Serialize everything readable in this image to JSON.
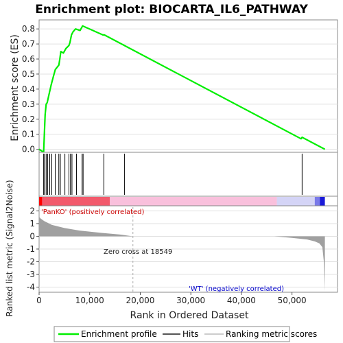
{
  "title": "Enrichment plot: BIOCARTA_IL6_PATHWAY",
  "colors": {
    "enrichment_line": "#00ee00",
    "hits": "#000000",
    "positive_label": "#cc0000",
    "negative_label": "#0000cc",
    "metric_fill": "#a0a0a0",
    "grid": "#e0e0e0"
  },
  "legend": {
    "enrichment_profile": "Enrichment profile",
    "hits": "Hits",
    "ranking_metric_scores": "Ranking metric scores"
  },
  "chart_data": [
    {
      "type": "line",
      "name": "enrichment-score-panel",
      "title": "Enrichment plot: BIOCARTA_IL6_PATHWAY",
      "ylabel": "Enrichment score (ES)",
      "ylim": [
        -0.02,
        0.86
      ],
      "yticks": [
        0.0,
        0.1,
        0.2,
        0.3,
        0.4,
        0.5,
        0.6,
        0.7,
        0.8
      ],
      "ytick_labels": [
        "0.0",
        "0.1",
        "0.2",
        "0.3",
        "0.4",
        "0.5",
        "0.6",
        "0.7",
        "0.8"
      ],
      "grid": true,
      "series": [
        {
          "x": [
            0,
            900,
            1000,
            1100,
            1200,
            1400,
            1600,
            2000,
            2400,
            2800,
            3200,
            3900,
            4100,
            4300,
            4800,
            5300,
            5900,
            6100,
            6400,
            6700,
            7200,
            8100,
            8600,
            12600,
            12900,
            51800,
            52000,
            56500
          ],
          "y": [
            0.0,
            -0.02,
            0.07,
            0.15,
            0.23,
            0.3,
            0.31,
            0.37,
            0.43,
            0.48,
            0.53,
            0.56,
            0.6,
            0.65,
            0.64,
            0.67,
            0.69,
            0.71,
            0.76,
            0.78,
            0.8,
            0.79,
            0.82,
            0.76,
            0.76,
            0.07,
            0.08,
            0.0
          ]
        }
      ]
    },
    {
      "type": "hits",
      "name": "hits-panel",
      "x": [
        900,
        1100,
        1400,
        1700,
        2100,
        2500,
        3200,
        3900,
        4200,
        5100,
        5900,
        6200,
        6500,
        7400,
        8500,
        8700,
        12800,
        16900,
        52000
      ]
    },
    {
      "type": "heatmap",
      "name": "ranking-colorbar",
      "segments": [
        {
          "from": 0,
          "to": 600,
          "color": "#ff0000"
        },
        {
          "from": 600,
          "to": 14000,
          "color": "#f25a6c"
        },
        {
          "from": 14000,
          "to": 47000,
          "color": "#f9c0dc"
        },
        {
          "from": 47000,
          "to": 54500,
          "color": "#d4d4f6"
        },
        {
          "from": 54500,
          "to": 55500,
          "color": "#7a7ae8"
        },
        {
          "from": 55500,
          "to": 56500,
          "color": "#1a1ad8"
        }
      ]
    },
    {
      "type": "area",
      "name": "ranked-metric-panel",
      "xlabel": "Rank in Ordered Dataset",
      "ylabel": "Ranked list metric (Signal2Noise)",
      "xlim": [
        0,
        59000
      ],
      "ylim": [
        -4.4,
        2.4
      ],
      "xticks": [
        0,
        10000,
        20000,
        30000,
        40000,
        50000
      ],
      "xtick_labels": [
        "0",
        "10,000",
        "20,000",
        "30,000",
        "40,000",
        "50,000"
      ],
      "yticks": [
        2,
        1,
        0,
        -1,
        -2,
        -3,
        -4
      ],
      "ytick_labels": [
        "2",
        "1",
        "0",
        "-1",
        "-2",
        "-3",
        "-4"
      ],
      "x": [
        0,
        300,
        1000,
        2500,
        5000,
        8000,
        12000,
        16000,
        18549,
        46500,
        50000,
        53000,
        54500,
        55400,
        56000,
        56300,
        56500
      ],
      "y": [
        1.55,
        1.4,
        1.2,
        0.9,
        0.65,
        0.45,
        0.28,
        0.14,
        0.0,
        0.0,
        -0.12,
        -0.25,
        -0.4,
        -0.55,
        -0.85,
        -2.0,
        -4.3
      ],
      "annotations": {
        "zero_cross": "Zero cross at 18549",
        "zero_cross_x": 18549,
        "positive": "'PanKO' (positively correlated)",
        "negative": "'WT' (negatively correlated)"
      }
    }
  ]
}
